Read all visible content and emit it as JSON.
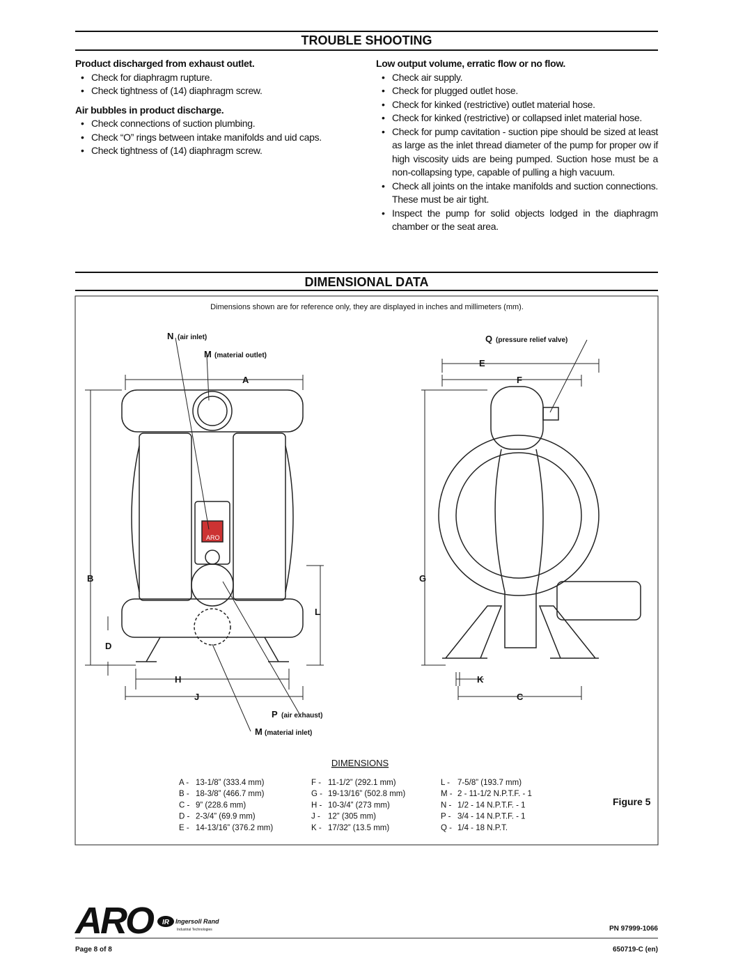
{
  "trouble_shooting": {
    "title": "TROUBLE SHOOTING",
    "left": [
      {
        "heading": "Product discharged from exhaust outlet.",
        "items": [
          "Check for diaphragm rupture.",
          "Check tightness of (14) diaphragm screw."
        ]
      },
      {
        "heading": "Air bubbles in product discharge.",
        "items": [
          "Check connections of suction plumbing.",
          "Check “O” rings between intake manifolds and  uid caps.",
          "Check tightness of (14) diaphragm screw."
        ]
      }
    ],
    "right": [
      {
        "heading": "Low output volume, erratic flow or no flow.",
        "items": [
          "Check air supply.",
          "Check for plugged outlet hose.",
          "Check for kinked (restrictive) outlet material hose.",
          "Check for kinked (restrictive) or collapsed inlet material hose.",
          "Check for pump cavitation - suction pipe should be sized at least as large as the inlet thread diameter of the pump for proper  ow if high viscosity  uids are being pumped. Suction hose must be a non-collapsing type, capable of pulling a high vacuum.",
          "Check all joints on the intake manifolds and suction connections. These must be air tight.",
          "Inspect the pump for solid objects lodged in the diaphragm chamber or the seat area."
        ]
      }
    ]
  },
  "dimensional_data": {
    "title": "DIMENSIONAL DATA",
    "note": "Dimensions shown are for reference only, they are displayed in inches and millimeters (mm).",
    "callouts": [
      {
        "letter": "N",
        "text": "(air inlet)"
      },
      {
        "letter": "M",
        "text": "(material outlet)"
      },
      {
        "letter": "Q",
        "text": "(pressure relief valve)"
      },
      {
        "letter": "P",
        "text": "(air exhaust)"
      },
      {
        "letter": "M",
        "text": "(material inlet)"
      }
    ],
    "letters": [
      "E",
      "F",
      "A",
      "B",
      "G",
      "L",
      "D",
      "H",
      "K",
      "J",
      "C"
    ],
    "badge": "ARO",
    "table_heading": "DIMENSIONS",
    "columns": [
      [
        [
          "A -",
          "13-1/8” (333.4 mm)"
        ],
        [
          "B -",
          "18-3/8” (466.7 mm)"
        ],
        [
          "C -",
          "9” (228.6 mm)"
        ],
        [
          "D -",
          "2-3/4” (69.9 mm)"
        ],
        [
          "E -",
          "14-13/16” (376.2 mm)"
        ]
      ],
      [
        [
          "F -",
          "11-1/2” (292.1 mm)"
        ],
        [
          "G -",
          "19-13/16” (502.8 mm)"
        ],
        [
          "H -",
          "10-3/4” (273 mm)"
        ],
        [
          "J -",
          "12” (305 mm)"
        ],
        [
          "K -",
          "17/32” (13.5 mm)"
        ]
      ],
      [
        [
          "L -",
          "7-5/8” (193.7 mm)"
        ],
        [
          "M -",
          "2 - 11-1/2 N.P.T.F. - 1"
        ],
        [
          "N -",
          "1/2 - 14 N.P.T.F. - 1"
        ],
        [
          "P -",
          "3/4 - 14 N.P.T.F. - 1"
        ],
        [
          "Q -",
          "1/4 - 18 N.P.T."
        ]
      ]
    ],
    "figure": "Figure 5"
  },
  "footer": {
    "brand": "ARO",
    "ir": "IR",
    "company": "Ingersoll Rand",
    "division": "Industrial Technologies",
    "pn": "PN 97999-1066",
    "page": "Page 8 of 8",
    "doc": "650719-C (en)"
  }
}
